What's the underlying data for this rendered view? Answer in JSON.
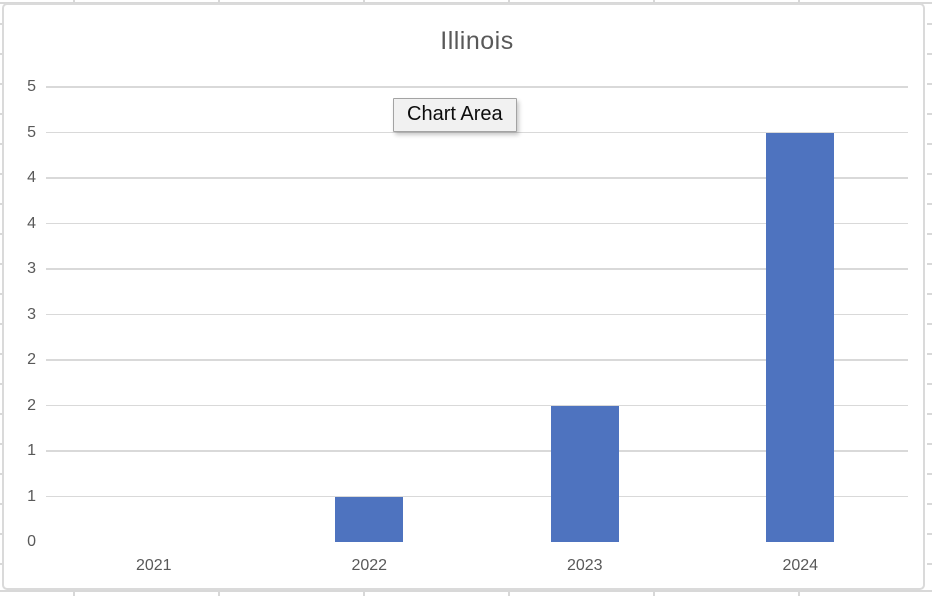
{
  "tooltip": {
    "label": "Chart Area"
  },
  "chart_data": {
    "type": "bar",
    "title": "Illinois",
    "categories": [
      "2021",
      "2022",
      "2023",
      "2024"
    ],
    "values": [
      0,
      0.5,
      1.5,
      4.5
    ],
    "bar_top_gridline_labels": [
      "0",
      "1",
      "2",
      "5"
    ],
    "xlabel": "",
    "ylabel": "",
    "ylim": [
      0,
      5
    ],
    "y_major_unit": 0.5,
    "y_tick_labels_top_to_bottom": [
      "5",
      "5",
      "4",
      "4",
      "3",
      "3",
      "2",
      "2",
      "1",
      "1",
      "0"
    ],
    "grid": "horizontal gridlines on, light gray",
    "legend": "none",
    "colors": {
      "bar": "#4e73bf",
      "gridline": "#d9d9d9",
      "axis_line": "#d5d5d5",
      "text": "#595959",
      "chart_border": "#dadada",
      "tooltip_bg": "#f1f1f1",
      "tooltip_border": "#a3a3a3"
    }
  }
}
